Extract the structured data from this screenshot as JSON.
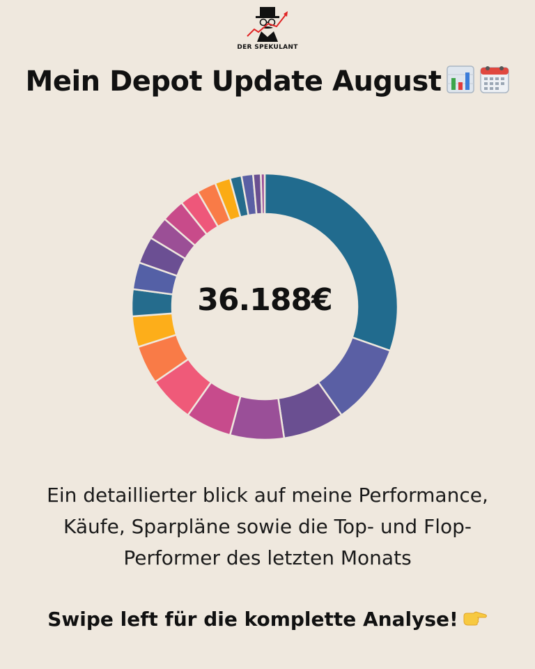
{
  "brand": {
    "name": "DER SPEKULANT"
  },
  "title": "Mein Depot Update August",
  "title_icons": [
    "bar-chart-icon",
    "calendar-icon"
  ],
  "total_value": "36.188€",
  "description": "Ein detaillierter blick auf meine Performance, Käufe, Sparpläne sowie die Top- und Flop-Performer des letzten Monats",
  "cta": "Swipe left für die komplette Analyse!",
  "cta_icon": "pointing-hand-icon",
  "chart_data": {
    "type": "pie",
    "subtype": "donut",
    "values": [
      32.5,
      10.5,
      8,
      7,
      6,
      6,
      5,
      4,
      3.5,
      3.5,
      3.5,
      3,
      3,
      2.5,
      2.5,
      2,
      1.5,
      1.5,
      1,
      0.5
    ],
    "colors": [
      "#216b8e",
      "#5a5fa4",
      "#6a4f91",
      "#9a4f98",
      "#c74b8c",
      "#ef5a79",
      "#f97b47",
      "#fdae1a",
      "#256c8d",
      "#5460a6",
      "#6b4f93",
      "#9b4f96",
      "#c84b8a",
      "#ee577a",
      "#f97b47",
      "#fbab14",
      "#246b8c",
      "#5a5fa4",
      "#6a4f91",
      "#9a4f98"
    ],
    "legend": "none"
  }
}
